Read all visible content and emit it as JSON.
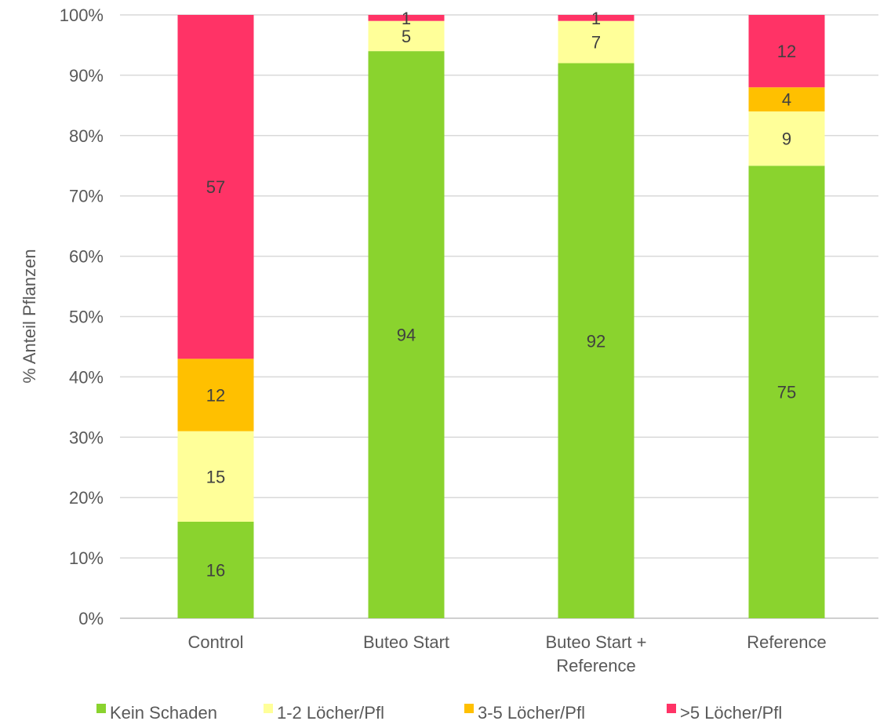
{
  "chart_data": {
    "type": "bar",
    "stacked": true,
    "percent": true,
    "categories": [
      "Control",
      "Buteo Start",
      "Buteo Start + Reference",
      "Reference"
    ],
    "category_lines": [
      [
        "Control"
      ],
      [
        "Buteo Start"
      ],
      [
        "Buteo Start +",
        "Reference"
      ],
      [
        "Reference"
      ]
    ],
    "series": [
      {
        "name": "Kein Schaden",
        "values": [
          16,
          94,
          92,
          75
        ],
        "color": "#8ad32e"
      },
      {
        "name": "1-2 Löcher/Pfl",
        "values": [
          15,
          5,
          7,
          9
        ],
        "color": "#ffff99"
      },
      {
        "name": "3-5 Löcher/Pfl",
        "values": [
          12,
          0,
          0,
          4
        ],
        "color": "#ffc000"
      },
      {
        "name": ">5 Löcher/Pfl",
        "values": [
          57,
          1,
          1,
          12
        ],
        "color": "#ff3366"
      }
    ],
    "ylabel": "% Anteil Pflanzen",
    "ylim": [
      0,
      100
    ],
    "yticks": [
      "0%",
      "10%",
      "20%",
      "30%",
      "40%",
      "50%",
      "60%",
      "70%",
      "80%",
      "90%",
      "100%"
    ],
    "grid": true,
    "legend": "bottom"
  }
}
